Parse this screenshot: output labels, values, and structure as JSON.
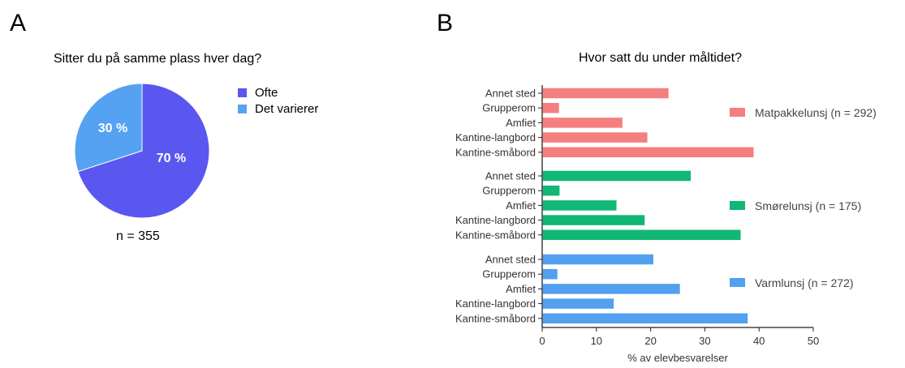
{
  "panels": {
    "a": "A",
    "b": "B"
  },
  "chart_data": [
    {
      "type": "pie",
      "title": "Sitter du på samme plass hver dag?",
      "note": "n = 355",
      "slices": [
        {
          "label": "Ofte",
          "value": 70,
          "display": "70 %",
          "color": "#5a57f0"
        },
        {
          "label": "Det varierer",
          "value": 30,
          "display": "30 %",
          "color": "#55a2f2"
        }
      ],
      "legend_position": "right"
    },
    {
      "type": "bar",
      "orientation": "horizontal",
      "title": "Hvor satt du under måltidet?",
      "xlabel": "% av elevbesvarelser",
      "xlim": [
        0,
        50
      ],
      "xticks": [
        0,
        10,
        20,
        30,
        40,
        50
      ],
      "categories": [
        "Annet sted",
        "Grupperom",
        "Amfiet",
        "Kantine-langbord",
        "Kantine-småbord"
      ],
      "series": [
        {
          "name": "Matpakkelunsj (n = 292)",
          "color": "#f47f7f",
          "values": [
            23.3,
            3.1,
            14.8,
            19.4,
            39.0
          ]
        },
        {
          "name": "Smørelunsj (n = 175)",
          "color": "#10b775",
          "values": [
            27.4,
            3.2,
            13.7,
            18.9,
            36.6
          ]
        },
        {
          "name": "Varmlunsj (n = 272)",
          "color": "#52a0ef",
          "values": [
            20.5,
            2.8,
            25.4,
            13.2,
            37.9
          ]
        }
      ],
      "grid": false,
      "legend_position": "right"
    }
  ]
}
